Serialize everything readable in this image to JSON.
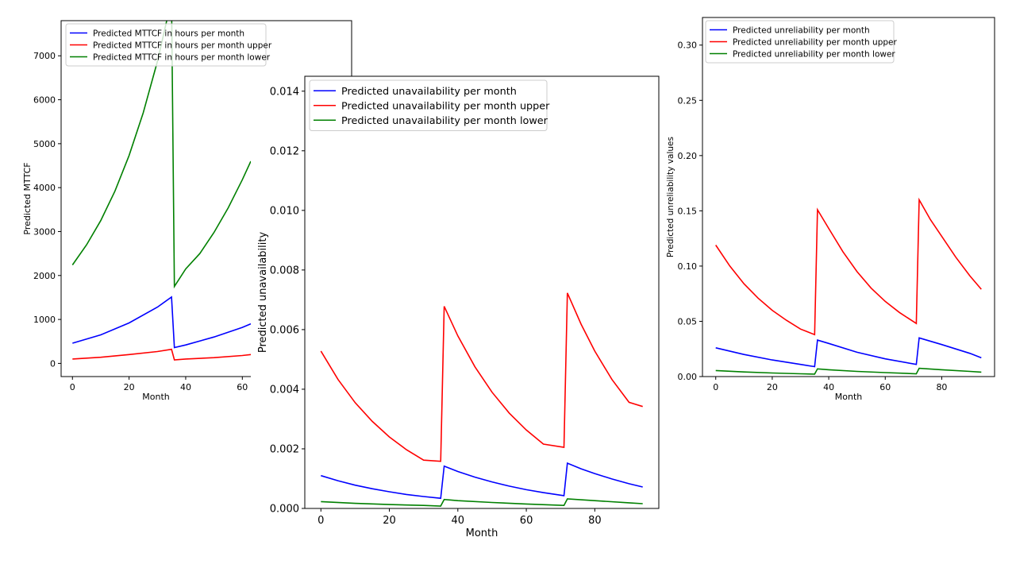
{
  "chart_data": [
    {
      "type": "line",
      "id": "mttcf",
      "title": "",
      "xlabel": "Month",
      "ylabel": "Predicted MTTCF",
      "xlim": [
        -4,
        63
      ],
      "ylim": [
        -300,
        7800
      ],
      "xticks": [
        0,
        20,
        40,
        60
      ],
      "yticks": [
        0,
        1000,
        2000,
        3000,
        4000,
        5000,
        6000,
        7000
      ],
      "legend_position": "top-left",
      "series": [
        {
          "name": "Predicted MTTCF in hours per month",
          "color": "#0000ff",
          "x": [
            0,
            10,
            20,
            30,
            35,
            36,
            40,
            50,
            60,
            63
          ],
          "y": [
            460,
            650,
            920,
            1280,
            1510,
            360,
            420,
            600,
            820,
            900
          ]
        },
        {
          "name": "Predicted MTTCF in hours per month upper",
          "color": "#ff0000",
          "x": [
            0,
            10,
            20,
            30,
            35,
            36,
            40,
            50,
            60,
            63
          ],
          "y": [
            100,
            140,
            200,
            270,
            320,
            80,
            100,
            130,
            180,
            200
          ]
        },
        {
          "name": "Predicted MTTCF in hours per month lower",
          "color": "#008000",
          "x": [
            0,
            5,
            10,
            15,
            20,
            25,
            30,
            35,
            36,
            40,
            45,
            50,
            55,
            60,
            63
          ],
          "y": [
            2240,
            2700,
            3250,
            3920,
            4730,
            5700,
            6870,
            8280,
            1750,
            2150,
            2500,
            2980,
            3540,
            4180,
            4600
          ]
        }
      ]
    },
    {
      "type": "line",
      "id": "unavailability",
      "title": "",
      "xlabel": "Month",
      "ylabel": "Predicted unavailability",
      "xlim": [
        -4.7,
        98.7
      ],
      "ylim": [
        0,
        0.0145
      ],
      "xticks": [
        0,
        20,
        40,
        60,
        80
      ],
      "yticks": [
        0.0,
        0.002,
        0.004,
        0.006,
        0.008,
        0.01,
        0.012,
        0.014
      ],
      "ytick_labels": [
        "0.000",
        "0.002",
        "0.004",
        "0.006",
        "0.008",
        "0.010",
        "0.012",
        "0.014"
      ],
      "legend_position": "top-left",
      "series": [
        {
          "name": "Predicted unavailability per month",
          "color": "#0000ff",
          "x": [
            0,
            5,
            10,
            15,
            20,
            25,
            30,
            35,
            36,
            40,
            45,
            50,
            55,
            60,
            65,
            71,
            72,
            76,
            80,
            85,
            90,
            94
          ],
          "y": [
            0.0011,
            0.00093,
            0.00078,
            0.00066,
            0.00056,
            0.00047,
            0.0004,
            0.00034,
            0.00142,
            0.00124,
            0.00105,
            0.00089,
            0.00075,
            0.00063,
            0.00053,
            0.00043,
            0.00152,
            0.00133,
            0.00117,
            0.00099,
            0.00083,
            0.00072
          ]
        },
        {
          "name": "Predicted unavailability per month upper",
          "color": "#ff0000",
          "x": [
            0,
            5,
            10,
            15,
            20,
            25,
            30,
            35,
            36,
            40,
            45,
            50,
            55,
            60,
            65,
            71,
            72,
            76,
            80,
            85,
            90,
            94
          ],
          "y": [
            0.00528,
            0.00433,
            0.00355,
            0.00292,
            0.0024,
            0.00197,
            0.00162,
            0.00158,
            0.00678,
            0.00579,
            0.00475,
            0.0039,
            0.0032,
            0.00263,
            0.00216,
            0.00205,
            0.00723,
            0.00618,
            0.00528,
            0.00433,
            0.00356,
            0.00342
          ]
        },
        {
          "name": "Predicted unavailability per month lower",
          "color": "#008000",
          "x": [
            0,
            10,
            20,
            30,
            35,
            36,
            40,
            50,
            60,
            71,
            72,
            80,
            90,
            94
          ],
          "y": [
            0.00023,
            0.00017,
            0.00013,
            0.0001,
            8e-05,
            0.0003,
            0.00026,
            0.0002,
            0.00015,
            0.0001,
            0.00032,
            0.00026,
            0.00019,
            0.00016
          ]
        }
      ]
    },
    {
      "type": "line",
      "id": "unreliability",
      "title": "",
      "xlabel": "Month",
      "ylabel": "Predicted unreliability values",
      "xlim": [
        -4.7,
        98.7
      ],
      "ylim": [
        0,
        0.325
      ],
      "xticks": [
        0,
        20,
        40,
        60,
        80
      ],
      "yticks": [
        0.0,
        0.05,
        0.1,
        0.15,
        0.2,
        0.25,
        0.3
      ],
      "ytick_labels": [
        "0.00",
        "0.05",
        "0.10",
        "0.15",
        "0.20",
        "0.25",
        "0.30"
      ],
      "legend_position": "top-left",
      "series": [
        {
          "name": "Predicted unreliability per month",
          "color": "#0000ff",
          "x": [
            0,
            10,
            20,
            30,
            35,
            36,
            40,
            50,
            60,
            71,
            72,
            80,
            90,
            94
          ],
          "y": [
            0.026,
            0.02,
            0.015,
            0.011,
            0.009,
            0.033,
            0.03,
            0.022,
            0.016,
            0.011,
            0.035,
            0.029,
            0.021,
            0.017
          ]
        },
        {
          "name": "Predicted unreliability per month upper",
          "color": "#ff0000",
          "x": [
            0,
            5,
            10,
            15,
            20,
            25,
            30,
            35,
            36,
            40,
            45,
            50,
            55,
            60,
            65,
            71,
            72,
            76,
            80,
            85,
            90,
            94
          ],
          "y": [
            0.119,
            0.1,
            0.084,
            0.071,
            0.06,
            0.051,
            0.043,
            0.038,
            0.151,
            0.134,
            0.113,
            0.095,
            0.08,
            0.068,
            0.058,
            0.048,
            0.16,
            0.142,
            0.127,
            0.108,
            0.091,
            0.079
          ]
        },
        {
          "name": "Predicted unreliability per month lower",
          "color": "#008000",
          "x": [
            0,
            10,
            20,
            30,
            35,
            36,
            40,
            50,
            60,
            71,
            72,
            80,
            90,
            94
          ],
          "y": [
            0.0055,
            0.0042,
            0.0032,
            0.0025,
            0.0022,
            0.007,
            0.0062,
            0.0047,
            0.0036,
            0.0025,
            0.0075,
            0.0062,
            0.0047,
            0.004
          ]
        }
      ]
    }
  ]
}
